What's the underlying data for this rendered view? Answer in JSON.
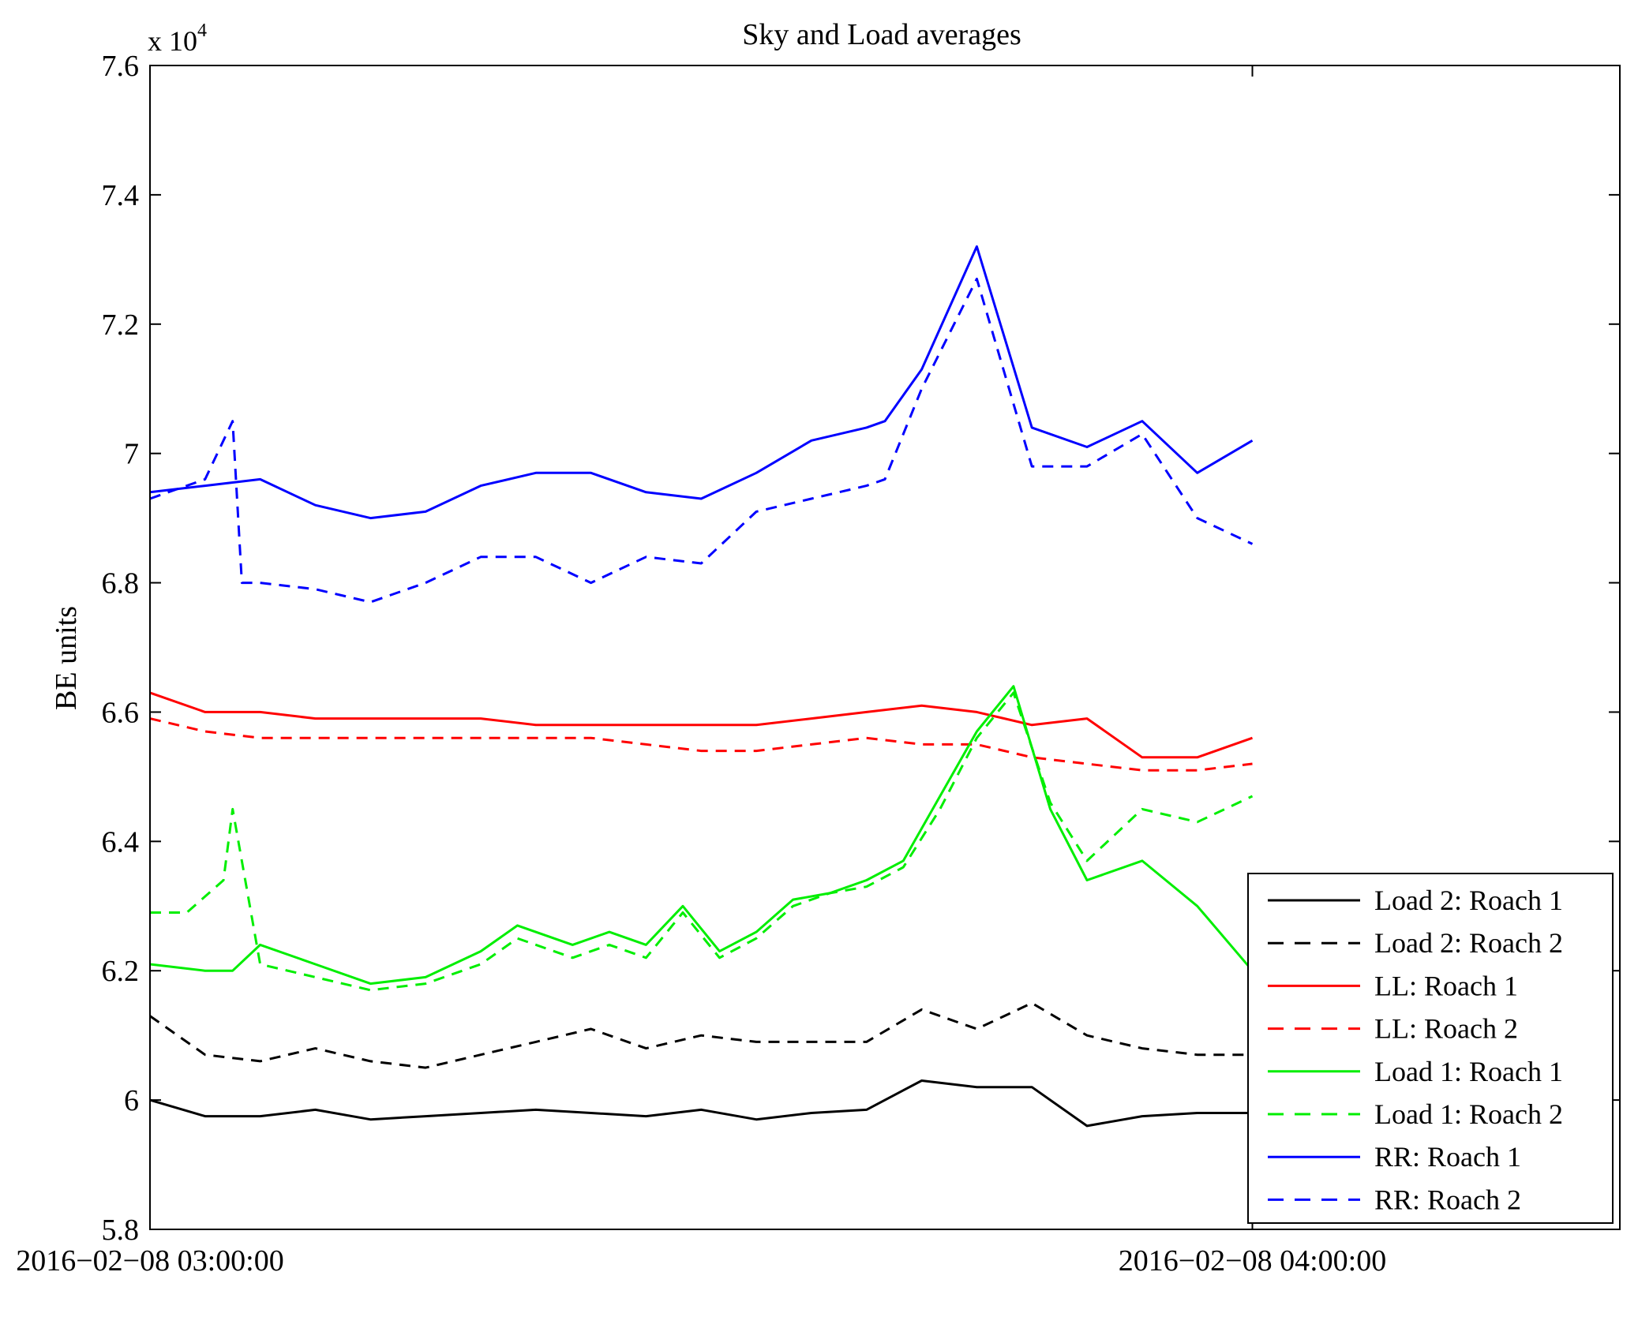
{
  "chart_data": {
    "type": "line",
    "title": "Sky and Load averages",
    "ylabel": "BE units",
    "xlabel": "",
    "y_multiplier_base": "x 10",
    "y_multiplier_exp": "4",
    "ylim": [
      5.8,
      7.6
    ],
    "yticks": [
      5.8,
      6,
      6.2,
      6.4,
      6.6,
      6.8,
      7,
      7.2,
      7.4,
      7.6
    ],
    "ytick_labels": [
      "5.8",
      "6",
      "6.2",
      "6.4",
      "6.6",
      "6.8",
      "7",
      "7.2",
      "7.4",
      "7.6"
    ],
    "xlim": [
      0,
      80
    ],
    "xticks": [
      0,
      60
    ],
    "xtick_labels": [
      "2016−02−08 03:00:00",
      "2016−02−08 04:00:00"
    ],
    "x_units": "minutes after 2016-02-08 03:00:00",
    "grid": false,
    "legend_position": "lower-right",
    "series": [
      {
        "name": "Load 2: Roach 1",
        "color": "#000000",
        "style": "solid",
        "x": [
          0,
          3,
          6,
          9,
          12,
          15,
          18,
          21,
          24,
          27,
          30,
          33,
          36,
          39,
          42,
          45,
          48,
          51,
          54,
          57,
          60
        ],
        "y": [
          6.0,
          5.975,
          5.975,
          5.985,
          5.97,
          5.975,
          5.98,
          5.985,
          5.98,
          5.975,
          5.985,
          5.97,
          5.98,
          5.985,
          6.03,
          6.02,
          6.02,
          5.96,
          5.975,
          5.98,
          5.98
        ]
      },
      {
        "name": "Load 2: Roach 2",
        "color": "#000000",
        "style": "dashed",
        "x": [
          0,
          3,
          6,
          9,
          12,
          15,
          18,
          21,
          24,
          27,
          30,
          33,
          36,
          39,
          42,
          45,
          48,
          51,
          54,
          57,
          60
        ],
        "y": [
          6.13,
          6.07,
          6.06,
          6.08,
          6.06,
          6.05,
          6.07,
          6.09,
          6.11,
          6.08,
          6.1,
          6.09,
          6.09,
          6.09,
          6.14,
          6.11,
          6.15,
          6.1,
          6.08,
          6.07,
          6.07
        ]
      },
      {
        "name": "LL: Roach 1",
        "color": "#ff0000",
        "style": "solid",
        "x": [
          0,
          3,
          6,
          9,
          12,
          15,
          18,
          21,
          24,
          27,
          30,
          33,
          36,
          39,
          42,
          45,
          48,
          51,
          54,
          57,
          60
        ],
        "y": [
          6.63,
          6.6,
          6.6,
          6.59,
          6.59,
          6.59,
          6.59,
          6.58,
          6.58,
          6.58,
          6.58,
          6.58,
          6.59,
          6.6,
          6.61,
          6.6,
          6.58,
          6.59,
          6.53,
          6.53,
          6.56
        ]
      },
      {
        "name": "LL: Roach 2",
        "color": "#ff0000",
        "style": "dashed",
        "x": [
          0,
          3,
          6,
          9,
          12,
          15,
          18,
          21,
          24,
          27,
          30,
          33,
          36,
          39,
          42,
          45,
          48,
          51,
          54,
          57,
          60
        ],
        "y": [
          6.59,
          6.57,
          6.56,
          6.56,
          6.56,
          6.56,
          6.56,
          6.56,
          6.56,
          6.55,
          6.54,
          6.54,
          6.55,
          6.56,
          6.55,
          6.55,
          6.53,
          6.52,
          6.51,
          6.51,
          6.52
        ]
      },
      {
        "name": "Load 1: Roach 1",
        "color": "#00ee00",
        "style": "solid",
        "x": [
          0,
          3,
          4.5,
          6,
          9,
          12,
          15,
          18,
          20,
          23,
          25,
          27,
          29,
          31,
          33,
          35,
          37,
          39,
          41,
          43,
          45,
          47,
          49,
          51,
          54,
          57,
          60
        ],
        "y": [
          6.21,
          6.2,
          6.2,
          6.24,
          6.21,
          6.18,
          6.19,
          6.23,
          6.27,
          6.24,
          6.26,
          6.24,
          6.3,
          6.23,
          6.26,
          6.31,
          6.32,
          6.34,
          6.37,
          6.47,
          6.57,
          6.64,
          6.45,
          6.34,
          6.37,
          6.3,
          6.2
        ]
      },
      {
        "name": "Load 1: Roach 2",
        "color": "#00ee00",
        "style": "dashed",
        "x": [
          0,
          2,
          4,
          4.5,
          6,
          9,
          12,
          15,
          18,
          20,
          23,
          25,
          27,
          29,
          31,
          33,
          35,
          37,
          39,
          41,
          43,
          45,
          47,
          49,
          51,
          54,
          57,
          60
        ],
        "y": [
          6.29,
          6.29,
          6.34,
          6.45,
          6.21,
          6.19,
          6.17,
          6.18,
          6.21,
          6.25,
          6.22,
          6.24,
          6.22,
          6.29,
          6.22,
          6.25,
          6.3,
          6.32,
          6.33,
          6.36,
          6.45,
          6.56,
          6.63,
          6.46,
          6.37,
          6.45,
          6.43,
          6.47
        ]
      },
      {
        "name": "RR: Roach 1",
        "color": "#0000ff",
        "style": "solid",
        "x": [
          0,
          3,
          6,
          9,
          12,
          15,
          18,
          21,
          24,
          27,
          30,
          33,
          36,
          39,
          40,
          42,
          45,
          48,
          51,
          54,
          57,
          60
        ],
        "y": [
          6.94,
          6.95,
          6.96,
          6.92,
          6.9,
          6.91,
          6.95,
          6.97,
          6.97,
          6.94,
          6.93,
          6.97,
          7.02,
          7.04,
          7.05,
          7.13,
          7.32,
          7.04,
          7.01,
          7.05,
          6.97,
          7.02
        ]
      },
      {
        "name": "RR: Roach 2",
        "color": "#0000ff",
        "style": "dashed",
        "x": [
          0,
          3,
          4.5,
          5,
          6,
          9,
          12,
          15,
          18,
          21,
          24,
          27,
          30,
          33,
          36,
          39,
          40,
          42,
          45,
          48,
          51,
          54,
          57,
          60
        ],
        "y": [
          6.93,
          6.96,
          7.05,
          6.8,
          6.8,
          6.79,
          6.77,
          6.8,
          6.84,
          6.84,
          6.8,
          6.84,
          6.83,
          6.91,
          6.93,
          6.95,
          6.96,
          7.1,
          7.27,
          6.98,
          6.98,
          7.03,
          6.9,
          6.86
        ]
      }
    ]
  }
}
